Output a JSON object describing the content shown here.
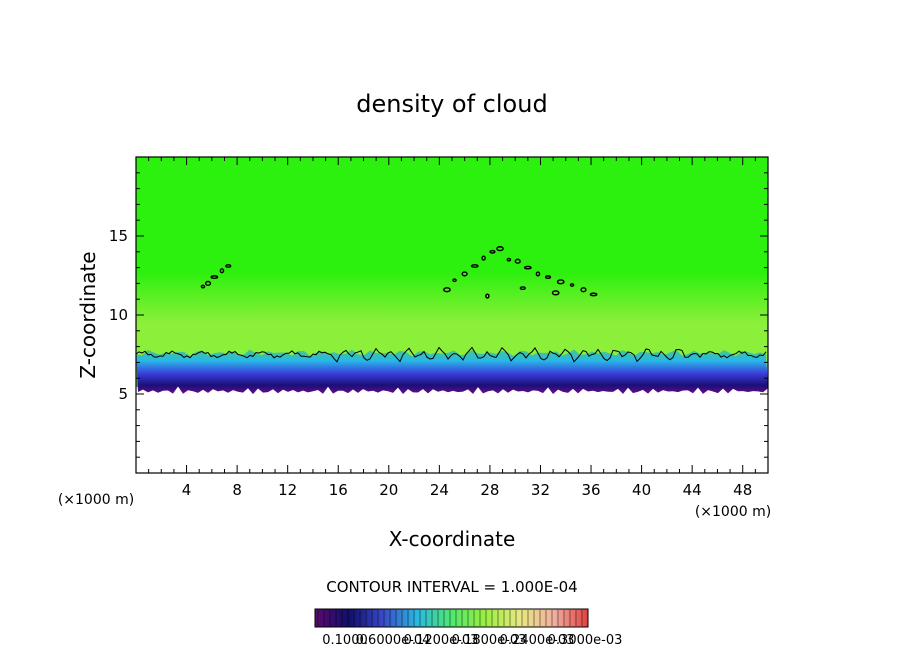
{
  "chart_data": {
    "type": "heatmap",
    "title": "density of cloud",
    "xlabel": "X-coordinate",
    "ylabel": "Z-coordinate",
    "x_unit": "(×1000 m)",
    "y_unit": "(×1000 m)",
    "xlim": [
      0,
      50
    ],
    "ylim": [
      0,
      20
    ],
    "x_ticks": [
      4,
      8,
      12,
      16,
      20,
      24,
      28,
      32,
      36,
      40,
      44,
      48
    ],
    "y_ticks": [
      5,
      10,
      15
    ],
    "grid": false,
    "cloud_base_km": 5.5,
    "cloud_edge_contour_km": 7.5,
    "contour_interval": "CONTOUR INTERVAL = 1.000E-04",
    "colorbar": {
      "labels": [
        "0.1000",
        "0.6000e-04",
        "0.1200e-03",
        "0.1800e-03",
        "0.2400e-03",
        "0.3000e-03"
      ],
      "colors": [
        "#5a0a6e",
        "#10106a",
        "#3a4ac8",
        "#2ab8e0",
        "#50e870",
        "#9aee40",
        "#e8e880",
        "#f0b0a0",
        "#e04040"
      ]
    },
    "colors": {
      "field_top": "#2cf00e",
      "field_mid": "#8cef3a",
      "field_low": "#46c888",
      "edge_cyan": "#28b8e8",
      "edge_blue": "#3a3ad8",
      "edge_navy": "#1a1078",
      "edge_purple": "#6a0a88"
    }
  }
}
